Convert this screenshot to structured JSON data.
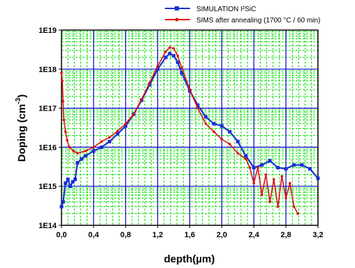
{
  "chart_data": {
    "type": "line",
    "xlabel": "depth(µm)",
    "ylabel": "Doping (cm",
    "ylabel_superscript": "-3",
    "ylabel_suffix": ")",
    "x_scale": "linear",
    "y_scale": "log",
    "xlim": [
      0.0,
      3.2
    ],
    "ylim": [
      100000000000000.0,
      1e+19
    ],
    "x_ticks": [
      "0,0",
      "0,4",
      "0,8",
      "1,2",
      "1,6",
      "2,0",
      "2,4",
      "2,8",
      "3,2"
    ],
    "y_ticks": [
      "1E14",
      "1E15",
      "1E16",
      "1E17",
      "1E18",
      "1E19"
    ],
    "grid": true,
    "legend_position": "top-right",
    "colors": {
      "major_grid": "#0000cc",
      "minor_grid": "#00dd00",
      "simulation": "#1a2fd6",
      "sims": "#e01010"
    },
    "series": [
      {
        "name": "SIMULATION I²SiC",
        "marker": "square",
        "color": "#1a2fd6",
        "x": [
          0.0,
          0.02,
          0.05,
          0.08,
          0.11,
          0.14,
          0.17,
          0.2,
          0.25,
          0.3,
          0.4,
          0.5,
          0.6,
          0.7,
          0.8,
          0.9,
          1.0,
          1.1,
          1.2,
          1.3,
          1.35,
          1.4,
          1.45,
          1.5,
          1.6,
          1.7,
          1.8,
          1.9,
          2.0,
          2.1,
          2.2,
          2.3,
          2.4,
          2.5,
          2.6,
          2.7,
          2.8,
          2.9,
          3.0,
          3.1,
          3.2
        ],
        "y": [
          300000000000000.0,
          400000000000000.0,
          1200000000000000.0,
          1500000000000000.0,
          1000000000000000.0,
          1300000000000000.0,
          1500000000000000.0,
          4000000000000000.0,
          5000000000000000.0,
          6000000000000000.0,
          8000000000000000.0,
          1e+16,
          1.4e+16,
          2.2e+16,
          3.5e+16,
          7e+16,
          1.6e+17,
          4e+17,
          1e+18,
          2e+18,
          2.5e+18,
          2.2e+18,
          1.5e+18,
          8e+17,
          2.8e+17,
          1.2e+17,
          6e+16,
          4e+16,
          3.5e+16,
          2.5e+16,
          1.4e+16,
          6000000000000000.0,
          3000000000000000.0,
          3500000000000000.0,
          4500000000000000.0,
          3000000000000000.0,
          2800000000000000.0,
          3500000000000000.0,
          3500000000000000.0,
          2800000000000000.0,
          1600000000000000.0
        ]
      },
      {
        "name": "SIMS after annealing (1700 °C / 60 min)",
        "marker": "dot",
        "color": "#e01010",
        "x": [
          0.0,
          0.01,
          0.02,
          0.03,
          0.05,
          0.07,
          0.1,
          0.15,
          0.2,
          0.3,
          0.4,
          0.5,
          0.6,
          0.7,
          0.8,
          0.9,
          1.0,
          1.1,
          1.2,
          1.3,
          1.35,
          1.4,
          1.45,
          1.5,
          1.6,
          1.7,
          1.8,
          1.9,
          2.0,
          2.1,
          2.2,
          2.3,
          2.35,
          2.4,
          2.45,
          2.5,
          2.55,
          2.6,
          2.65,
          2.7,
          2.75,
          2.8,
          2.85,
          2.9,
          2.95
        ],
        "y": [
          8e+17,
          5e+17,
          1.5e+17,
          5e+16,
          2.5e+16,
          1.5e+16,
          1e+16,
          8000000000000000.0,
          7000000000000000.0,
          8000000000000000.0,
          1e+16,
          1.4e+16,
          1.8e+16,
          2.6e+16,
          4e+16,
          7e+16,
          1.7e+17,
          4.5e+17,
          1.2e+18,
          2.8e+18,
          3.6e+18,
          3.4e+18,
          2.2e+18,
          1.1e+18,
          3e+17,
          1e+17,
          4e+16,
          2.5e+16,
          1.6e+16,
          1.2e+16,
          7000000000000000.0,
          5000000000000000.0,
          3000000000000000.0,
          1200000000000000.0,
          3000000000000000.0,
          600000000000000.0,
          2000000000000000.0,
          400000000000000.0,
          1500000000000000.0,
          300000000000000.0,
          1800000000000000.0,
          500000000000000.0,
          1200000000000000.0,
          300000000000000.0,
          200000000000000.0
        ]
      }
    ]
  }
}
